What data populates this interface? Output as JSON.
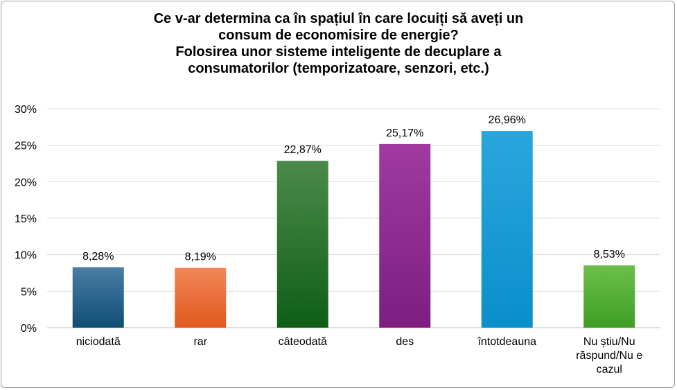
{
  "chart_data": {
    "type": "bar",
    "title": [
      "Ce v-ar determina ca în spațiul în care locuiți să aveți un",
      "consum de economisire de energie?",
      "Folosirea unor sisteme inteligente de decuplare a",
      "consumatorilor (temporizatoare, senzori, etc.)"
    ],
    "xlabel": "",
    "ylabel": "",
    "ylim": [
      0,
      30
    ],
    "y_ticks": [
      "0%",
      "5%",
      "10%",
      "15%",
      "20%",
      "25%",
      "30%"
    ],
    "grid": true,
    "legend": "none",
    "categories": [
      [
        "niciodată"
      ],
      [
        "rar"
      ],
      [
        "câteodată"
      ],
      [
        "des"
      ],
      [
        "întotdeauna"
      ],
      [
        "Nu știu/Nu",
        "răspund/Nu e",
        "cazul"
      ]
    ],
    "values": [
      8.28,
      8.19,
      22.87,
      25.17,
      26.96,
      8.53
    ],
    "data_labels": [
      "8,28%",
      "8,19%",
      "22,87%",
      "25,17%",
      "26,96%",
      "8,53%"
    ],
    "colors": [
      [
        "#4a7ea6",
        "#0f4d75"
      ],
      [
        "#f2875a",
        "#e05a1c"
      ],
      [
        "#4b8a4b",
        "#0f5e16"
      ],
      [
        "#a03aa0",
        "#7d1e80"
      ],
      [
        "#2aa6dd",
        "#0a8fcc"
      ],
      [
        "#6cbf4a",
        "#3f9e23"
      ]
    ]
  }
}
